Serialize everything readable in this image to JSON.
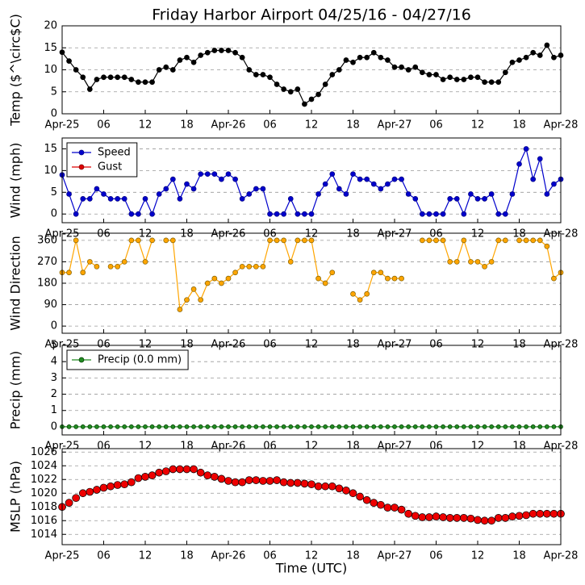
{
  "title": "Friday Harbor Airport 04/25/16 - 04/27/16",
  "x_label": "Time (UTC)",
  "chart_data": [
    {
      "type": "line",
      "ylabel": "Temp ($^\\circ$C)",
      "ylim": [
        0,
        20
      ],
      "yticks": [
        0,
        5,
        10,
        15,
        20
      ],
      "grid": true,
      "xlim": [
        0,
        72
      ],
      "xticks": [
        {
          "value": 0,
          "label": "Apr-25"
        },
        {
          "value": 6,
          "label": "06"
        },
        {
          "value": 12,
          "label": "12"
        },
        {
          "value": 18,
          "label": "18"
        },
        {
          "value": 24,
          "label": "Apr-26"
        },
        {
          "value": 30,
          "label": "06"
        },
        {
          "value": 36,
          "label": "12"
        },
        {
          "value": 42,
          "label": "18"
        },
        {
          "value": 48,
          "label": "Apr-27"
        },
        {
          "value": 54,
          "label": "06"
        },
        {
          "value": 60,
          "label": "12"
        },
        {
          "value": 66,
          "label": "18"
        },
        {
          "value": 72,
          "label": "Apr-28"
        }
      ],
      "x": [
        0,
        1,
        2,
        3,
        4,
        5,
        6,
        7,
        8,
        9,
        10,
        11,
        12,
        13,
        14,
        15,
        16,
        17,
        18,
        19,
        20,
        21,
        22,
        23,
        24,
        25,
        26,
        27,
        28,
        29,
        30,
        31,
        32,
        33,
        34,
        35,
        36,
        37,
        38,
        39,
        40,
        41,
        42,
        43,
        44,
        45,
        46,
        47,
        48,
        49,
        50,
        51,
        52,
        53,
        54,
        55,
        56,
        57,
        58,
        59,
        60,
        61,
        62,
        63,
        64,
        65,
        66,
        67,
        68,
        69,
        70,
        71,
        72
      ],
      "series": [
        {
          "color": "#000000",
          "marker_edge": "#000000",
          "r": 3,
          "values": [
            14,
            12,
            10,
            8.3,
            5.6,
            7.8,
            8.3,
            8.3,
            8.3,
            8.3,
            7.8,
            7.2,
            7.2,
            7.2,
            10,
            10.6,
            10,
            12.2,
            12.8,
            11.7,
            13.3,
            13.9,
            14.4,
            14.4,
            14.4,
            13.9,
            12.8,
            10,
            8.9,
            8.9,
            8.3,
            6.7,
            5.6,
            5,
            5.6,
            2.2,
            3.3,
            4.4,
            6.7,
            8.9,
            10,
            12.2,
            11.7,
            12.8,
            12.8,
            13.9,
            12.8,
            12.2,
            10.6,
            10.6,
            10,
            10.6,
            9.4,
            8.9,
            8.9,
            7.8,
            8.3,
            7.8,
            7.8,
            8.3,
            8.3,
            7.2,
            7.2,
            7.2,
            9.4,
            11.7,
            12.2,
            12.8,
            13.9,
            13.3,
            15.6,
            12.8,
            13.3
          ]
        }
      ]
    },
    {
      "type": "line",
      "ylabel": "Wind (mph)",
      "ylim": [
        -2,
        17.5
      ],
      "yticks": [
        0,
        5,
        10,
        15
      ],
      "grid": true,
      "xlim": [
        0,
        72
      ],
      "legend": "upper left",
      "xticks": [
        {
          "value": 0,
          "label": "Apr-25"
        },
        {
          "value": 6,
          "label": "06"
        },
        {
          "value": 12,
          "label": "12"
        },
        {
          "value": 18,
          "label": "18"
        },
        {
          "value": 24,
          "label": "Apr-26"
        },
        {
          "value": 30,
          "label": "06"
        },
        {
          "value": 36,
          "label": "12"
        },
        {
          "value": 42,
          "label": "18"
        },
        {
          "value": 48,
          "label": "Apr-27"
        },
        {
          "value": 54,
          "label": "06"
        },
        {
          "value": 60,
          "label": "12"
        },
        {
          "value": 66,
          "label": "18"
        },
        {
          "value": 72,
          "label": "Apr-28"
        }
      ],
      "x": [
        0,
        1,
        2,
        3,
        4,
        5,
        6,
        7,
        8,
        9,
        10,
        11,
        12,
        13,
        14,
        15,
        16,
        17,
        18,
        19,
        20,
        21,
        22,
        23,
        24,
        25,
        26,
        27,
        28,
        29,
        30,
        31,
        32,
        33,
        34,
        35,
        36,
        37,
        38,
        39,
        40,
        41,
        42,
        43,
        44,
        45,
        46,
        47,
        48,
        49,
        50,
        51,
        52,
        53,
        54,
        55,
        56,
        57,
        58,
        59,
        60,
        61,
        62,
        63,
        64,
        65,
        66,
        67,
        68,
        69,
        70,
        71,
        72
      ],
      "series": [
        {
          "name": "Speed",
          "color": "#0000cc",
          "marker_edge": "#000080",
          "r": 3,
          "values": [
            9,
            4.6,
            0,
            3.5,
            3.5,
            5.8,
            4.6,
            3.5,
            3.5,
            3.5,
            0,
            0,
            3.5,
            0,
            4.6,
            5.8,
            8,
            3.5,
            6.9,
            5.8,
            9.2,
            9.2,
            9.2,
            8,
            9.2,
            8,
            3.5,
            4.6,
            5.8,
            5.8,
            0,
            0,
            0,
            3.5,
            0,
            0,
            0,
            4.6,
            6.9,
            9.2,
            5.8,
            4.6,
            9.2,
            8,
            8,
            6.9,
            5.8,
            6.9,
            8,
            8,
            4.6,
            3.5,
            0,
            0,
            0,
            0,
            3.5,
            3.5,
            0,
            4.6,
            3.5,
            3.5,
            4.6,
            0,
            0,
            4.6,
            11.5,
            15,
            8,
            12.7,
            4.6,
            6.9,
            8
          ]
        },
        {
          "name": "Gust",
          "color": "#dd0000",
          "marker_edge": "#800000",
          "r": 3,
          "values": [
            null,
            null,
            null,
            null,
            null,
            null,
            null,
            null,
            null,
            null,
            null,
            null,
            null,
            null,
            null,
            null,
            null,
            null,
            null,
            null,
            null,
            null,
            null,
            null,
            null,
            null,
            null,
            null,
            null,
            null,
            null,
            null,
            null,
            null,
            null,
            null,
            null,
            null,
            null,
            null,
            null,
            null,
            null,
            null,
            null,
            null,
            null,
            null,
            null,
            null,
            null,
            null,
            null,
            null,
            null,
            null,
            null,
            null,
            null,
            null,
            null,
            null,
            null,
            null,
            null,
            null,
            null,
            null,
            null,
            null,
            null,
            null,
            null
          ]
        }
      ]
    },
    {
      "type": "line",
      "ylabel": "Wind Direction",
      "ylim": [
        -30,
        390
      ],
      "yticks": [
        0,
        90,
        180,
        270,
        360
      ],
      "grid": true,
      "xlim": [
        0,
        72
      ],
      "xticks": [
        {
          "value": 0,
          "label": "Apr-25"
        },
        {
          "value": 6,
          "label": "06"
        },
        {
          "value": 12,
          "label": "12"
        },
        {
          "value": 18,
          "label": "18"
        },
        {
          "value": 24,
          "label": "Apr-26"
        },
        {
          "value": 30,
          "label": "06"
        },
        {
          "value": 36,
          "label": "12"
        },
        {
          "value": 42,
          "label": "18"
        },
        {
          "value": 48,
          "label": "Apr-27"
        },
        {
          "value": 54,
          "label": "06"
        },
        {
          "value": 60,
          "label": "12"
        },
        {
          "value": 66,
          "label": "18"
        },
        {
          "value": 72,
          "label": "Apr-28"
        }
      ],
      "x": [
        0,
        1,
        2,
        3,
        4,
        5,
        6,
        7,
        8,
        9,
        10,
        11,
        12,
        13,
        14,
        15,
        16,
        17,
        18,
        19,
        20,
        21,
        22,
        23,
        24,
        25,
        26,
        27,
        28,
        29,
        30,
        31,
        32,
        33,
        34,
        35,
        36,
        37,
        38,
        39,
        40,
        41,
        42,
        43,
        44,
        45,
        46,
        47,
        48,
        49,
        50,
        51,
        52,
        53,
        54,
        55,
        56,
        57,
        58,
        59,
        60,
        61,
        62,
        63,
        64,
        65,
        66,
        67,
        68,
        69,
        70,
        71,
        72
      ],
      "series": [
        {
          "color": "#ffa500",
          "marker_edge": "#806000",
          "r": 3,
          "values": [
            225,
            225,
            360,
            225,
            270,
            250,
            null,
            250,
            250,
            270,
            360,
            360,
            270,
            360,
            null,
            360,
            360,
            70,
            110,
            155,
            110,
            180,
            200,
            180,
            200,
            225,
            250,
            250,
            250,
            250,
            360,
            360,
            360,
            270,
            360,
            360,
            360,
            200,
            180,
            225,
            null,
            null,
            135,
            110,
            135,
            225,
            225,
            200,
            200,
            200,
            null,
            null,
            360,
            360,
            360,
            360,
            270,
            270,
            360,
            270,
            270,
            250,
            270,
            360,
            360,
            null,
            360,
            360,
            360,
            360,
            335,
            200,
            225
          ]
        }
      ]
    },
    {
      "type": "line",
      "ylabel": "Precip (mm)",
      "ylim": [
        -0.5,
        5
      ],
      "yticks": [
        0,
        1,
        2,
        3,
        4,
        5
      ],
      "grid": true,
      "xlim": [
        0,
        72
      ],
      "legend": "upper left",
      "xticks": [
        {
          "value": 0,
          "label": "Apr-25"
        },
        {
          "value": 6,
          "label": "06"
        },
        {
          "value": 12,
          "label": "12"
        },
        {
          "value": 18,
          "label": "18"
        },
        {
          "value": 24,
          "label": "Apr-26"
        },
        {
          "value": 30,
          "label": "06"
        },
        {
          "value": 36,
          "label": "12"
        },
        {
          "value": 42,
          "label": "18"
        },
        {
          "value": 48,
          "label": "Apr-27"
        },
        {
          "value": 54,
          "label": "06"
        },
        {
          "value": 60,
          "label": "12"
        },
        {
          "value": 66,
          "label": "18"
        },
        {
          "value": 72,
          "label": "Apr-28"
        }
      ],
      "x": [
        0,
        1,
        2,
        3,
        4,
        5,
        6,
        7,
        8,
        9,
        10,
        11,
        12,
        13,
        14,
        15,
        16,
        17,
        18,
        19,
        20,
        21,
        22,
        23,
        24,
        25,
        26,
        27,
        28,
        29,
        30,
        31,
        32,
        33,
        34,
        35,
        36,
        37,
        38,
        39,
        40,
        41,
        42,
        43,
        44,
        45,
        46,
        47,
        48,
        49,
        50,
        51,
        52,
        53,
        54,
        55,
        56,
        57,
        58,
        59,
        60,
        61,
        62,
        63,
        64,
        65,
        66,
        67,
        68,
        69,
        70,
        71,
        72
      ],
      "series": [
        {
          "name": "Precip (0.0 mm)",
          "color": "#228b22",
          "marker_edge": "#004000",
          "r": 2.5,
          "values": [
            0,
            0,
            0,
            0,
            0,
            0,
            0,
            0,
            0,
            0,
            0,
            0,
            0,
            0,
            0,
            0,
            0,
            0,
            0,
            0,
            0,
            0,
            0,
            0,
            0,
            0,
            0,
            0,
            0,
            0,
            0,
            0,
            0,
            0,
            0,
            0,
            0,
            0,
            0,
            0,
            0,
            0,
            0,
            0,
            0,
            0,
            0,
            0,
            0,
            0,
            0,
            0,
            0,
            0,
            0,
            0,
            0,
            0,
            0,
            0,
            0,
            0,
            0,
            0,
            0,
            0,
            0,
            0,
            0,
            0,
            0,
            0,
            0
          ]
        }
      ]
    },
    {
      "type": "line",
      "ylabel": "MSLP (hPa)",
      "ylim": [
        1012.5,
        1026.5
      ],
      "yticks": [
        1014,
        1016,
        1018,
        1020,
        1022,
        1024,
        1026
      ],
      "grid": true,
      "xlim": [
        0,
        72
      ],
      "xticks": [
        {
          "value": 0,
          "label": "Apr-25"
        },
        {
          "value": 6,
          "label": "06"
        },
        {
          "value": 12,
          "label": "12"
        },
        {
          "value": 18,
          "label": "18"
        },
        {
          "value": 24,
          "label": "Apr-26"
        },
        {
          "value": 30,
          "label": "06"
        },
        {
          "value": 36,
          "label": "12"
        },
        {
          "value": 42,
          "label": "18"
        },
        {
          "value": 48,
          "label": "Apr-27"
        },
        {
          "value": 54,
          "label": "06"
        },
        {
          "value": 60,
          "label": "12"
        },
        {
          "value": 66,
          "label": "18"
        },
        {
          "value": 72,
          "label": "Apr-28"
        }
      ],
      "x": [
        0,
        1,
        2,
        3,
        4,
        5,
        6,
        7,
        8,
        9,
        10,
        11,
        12,
        13,
        14,
        15,
        16,
        17,
        18,
        19,
        20,
        21,
        22,
        23,
        24,
        25,
        26,
        27,
        28,
        29,
        30,
        31,
        32,
        33,
        34,
        35,
        36,
        37,
        38,
        39,
        40,
        41,
        42,
        43,
        44,
        45,
        46,
        47,
        48,
        49,
        50,
        51,
        52,
        53,
        54,
        55,
        56,
        57,
        58,
        59,
        60,
        61,
        62,
        63,
        64,
        65,
        66,
        67,
        68,
        69,
        70,
        71,
        72
      ],
      "series": [
        {
          "color": "#ee0000",
          "marker_edge": "#000000",
          "r": 4.5,
          "noline": true,
          "values": [
            1018,
            1018.6,
            1019.3,
            1020,
            1020.2,
            1020.5,
            1020.8,
            1021,
            1021.2,
            1021.3,
            1021.6,
            1022.2,
            1022.4,
            1022.6,
            1023,
            1023.2,
            1023.5,
            1023.5,
            1023.5,
            1023.5,
            1023,
            1022.6,
            1022.4,
            1022.1,
            1021.8,
            1021.6,
            1021.6,
            1021.9,
            1021.9,
            1021.8,
            1021.8,
            1021.9,
            1021.6,
            1021.5,
            1021.5,
            1021.4,
            1021.3,
            1021,
            1021,
            1021,
            1020.7,
            1020.4,
            1020,
            1019.5,
            1019,
            1018.6,
            1018.3,
            1017.9,
            1017.9,
            1017.6,
            1017,
            1016.7,
            1016.5,
            1016.5,
            1016.6,
            1016.5,
            1016.4,
            1016.4,
            1016.4,
            1016.3,
            1016.1,
            1016,
            1016,
            1016.4,
            1016.4,
            1016.6,
            1016.7,
            1016.8,
            1017,
            1017,
            1017,
            1017,
            1017
          ]
        }
      ]
    }
  ]
}
